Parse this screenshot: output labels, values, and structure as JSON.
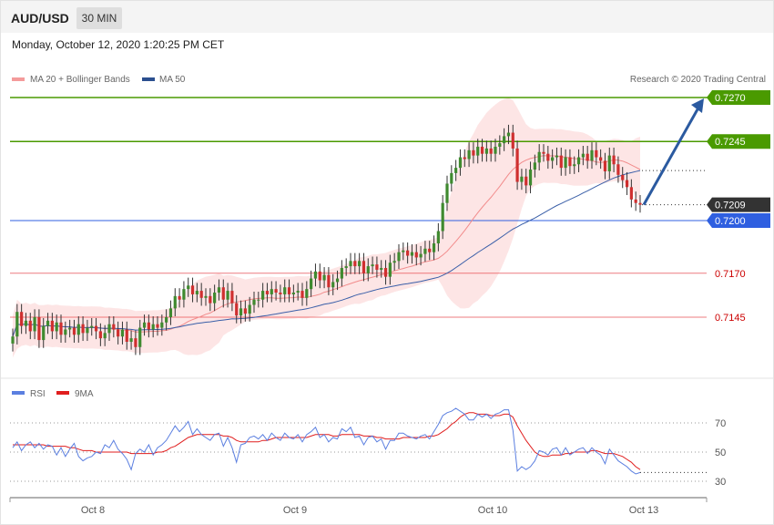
{
  "header": {
    "symbol": "AUD/USD",
    "timeframe": "30 MIN",
    "datetime": "Monday, October 12, 2020 1:20:25 PM CET"
  },
  "legend": {
    "ma20": "MA 20 + Bollinger Bands",
    "ma50": "MA 50",
    "credit": "Research © 2020 Trading Central"
  },
  "rsi_legend": {
    "rsi": "RSI",
    "ma": "9MA"
  },
  "colors": {
    "green": "#4a9a00",
    "blue": "#2f5fe0",
    "red": "#e8464a",
    "dark": "#333333",
    "band": "#fde0e0",
    "candle_up": "#3f8a2f",
    "candle_down": "#cf2f2f"
  },
  "chart_data": [
    {
      "type": "candlestick",
      "title": "AUD/USD 30 MIN",
      "x_ticks": [
        "Oct 8",
        "Oct 9",
        "Oct 10",
        "Oct 13"
      ],
      "ylim": [
        0.712,
        0.729
      ],
      "levels": [
        {
          "label": "0.7270",
          "value": 0.727,
          "kind": "target"
        },
        {
          "label": "0.7245",
          "value": 0.7245,
          "kind": "target"
        },
        {
          "label": "0.7209",
          "value": 0.7209,
          "kind": "last"
        },
        {
          "label": "0.7200",
          "value": 0.72,
          "kind": "pivot"
        },
        {
          "label": "0.7170",
          "value": 0.717,
          "kind": "support"
        },
        {
          "label": "0.7145",
          "value": 0.7145,
          "kind": "support"
        }
      ],
      "close": [
        0.7134,
        0.7148,
        0.714,
        0.7143,
        0.7137,
        0.7145,
        0.7132,
        0.714,
        0.7143,
        0.7137,
        0.7142,
        0.7135,
        0.7138,
        0.7139,
        0.7135,
        0.7141,
        0.7136,
        0.7139,
        0.714,
        0.7137,
        0.7133,
        0.7136,
        0.7141,
        0.7138,
        0.7134,
        0.7138,
        0.7131,
        0.7133,
        0.7128,
        0.7139,
        0.7142,
        0.7138,
        0.7141,
        0.7139,
        0.7142,
        0.7145,
        0.715,
        0.7157,
        0.7155,
        0.7161,
        0.7163,
        0.7158,
        0.716,
        0.7156,
        0.7157,
        0.7153,
        0.7159,
        0.7162,
        0.7155,
        0.716,
        0.7153,
        0.7146,
        0.715,
        0.7147,
        0.7152,
        0.7155,
        0.7155,
        0.716,
        0.7158,
        0.7161,
        0.7159,
        0.7158,
        0.7162,
        0.7158,
        0.7159,
        0.716,
        0.7156,
        0.7161,
        0.7167,
        0.7171,
        0.7166,
        0.7169,
        0.7162,
        0.7165,
        0.7167,
        0.7173,
        0.7174,
        0.7177,
        0.7174,
        0.7177,
        0.717,
        0.7174,
        0.7175,
        0.7172,
        0.7173,
        0.7168,
        0.7176,
        0.7177,
        0.7182,
        0.7183,
        0.718,
        0.7182,
        0.7179,
        0.7181,
        0.7184,
        0.7182,
        0.7187,
        0.7194,
        0.721,
        0.7221,
        0.7227,
        0.723,
        0.7236,
        0.7235,
        0.724,
        0.7237,
        0.7242,
        0.7238,
        0.7241,
        0.7238,
        0.7242,
        0.7244,
        0.7248,
        0.725,
        0.7241,
        0.7222,
        0.7225,
        0.722,
        0.7229,
        0.7233,
        0.7239,
        0.7238,
        0.7234,
        0.7236,
        0.7237,
        0.723,
        0.7236,
        0.7231,
        0.7232,
        0.7236,
        0.7238,
        0.7234,
        0.724,
        0.7236,
        0.7234,
        0.7228,
        0.7237,
        0.7232,
        0.7226,
        0.7223,
        0.7219,
        0.7212,
        0.721,
        0.7209
      ],
      "series": [
        {
          "name": "MA 20 + Bollinger Bands"
        },
        {
          "name": "MA 50"
        }
      ]
    },
    {
      "type": "line",
      "y_ticks": [
        70,
        50,
        30
      ],
      "ylim": [
        20,
        85
      ],
      "series": [
        {
          "name": "RSI",
          "values": [
            53,
            57,
            51,
            55,
            57,
            53,
            56,
            52,
            55,
            54,
            48,
            53,
            47,
            52,
            56,
            47,
            44,
            46,
            47,
            50,
            49,
            55,
            53,
            58,
            52,
            49,
            45,
            38,
            49,
            52,
            50,
            55,
            48,
            53,
            55,
            58,
            63,
            68,
            64,
            67,
            71,
            62,
            66,
            62,
            60,
            58,
            62,
            63,
            54,
            60,
            53,
            43,
            55,
            56,
            60,
            61,
            59,
            62,
            58,
            63,
            60,
            58,
            63,
            60,
            59,
            62,
            57,
            62,
            64,
            67,
            60,
            62,
            57,
            60,
            59,
            66,
            64,
            67,
            60,
            61,
            55,
            60,
            61,
            57,
            59,
            52,
            58,
            58,
            63,
            63,
            61,
            60,
            59,
            61,
            62,
            59,
            64,
            69,
            75,
            77,
            78,
            80,
            78,
            76,
            72,
            72,
            76,
            74,
            76,
            73,
            76,
            77,
            79,
            79,
            65,
            37,
            40,
            38,
            40,
            44,
            51,
            50,
            48,
            52,
            53,
            48,
            53,
            48,
            50,
            52,
            53,
            49,
            53,
            50,
            48,
            42,
            52,
            48,
            44,
            42,
            40,
            37,
            35,
            36
          ]
        },
        {
          "name": "9MA",
          "values": [
            55,
            55,
            55,
            55,
            55,
            55,
            55,
            55,
            54,
            54,
            54,
            54,
            54,
            53,
            53,
            52,
            51,
            51,
            51,
            50,
            50,
            50,
            50,
            50,
            50,
            50,
            50,
            49,
            49,
            49,
            49,
            49,
            49,
            50,
            50,
            51,
            53,
            54,
            56,
            58,
            60,
            61,
            62,
            62,
            62,
            62,
            62,
            62,
            61,
            61,
            60,
            58,
            57,
            57,
            57,
            57,
            57,
            58,
            58,
            59,
            60,
            60,
            60,
            60,
            60,
            60,
            60,
            60,
            61,
            62,
            62,
            62,
            62,
            61,
            61,
            62,
            62,
            62,
            62,
            62,
            61,
            61,
            61,
            60,
            60,
            59,
            59,
            59,
            59,
            60,
            60,
            60,
            60,
            60,
            60,
            61,
            61,
            62,
            64,
            66,
            69,
            71,
            74,
            76,
            77,
            77,
            76,
            76,
            76,
            75,
            75,
            75,
            76,
            76,
            74,
            68,
            63,
            58,
            54,
            50,
            48,
            47,
            47,
            48,
            48,
            48,
            49,
            49,
            50,
            50,
            50,
            50,
            51,
            51,
            50,
            49,
            49,
            49,
            48,
            47,
            45,
            43,
            40,
            38
          ]
        }
      ]
    }
  ]
}
